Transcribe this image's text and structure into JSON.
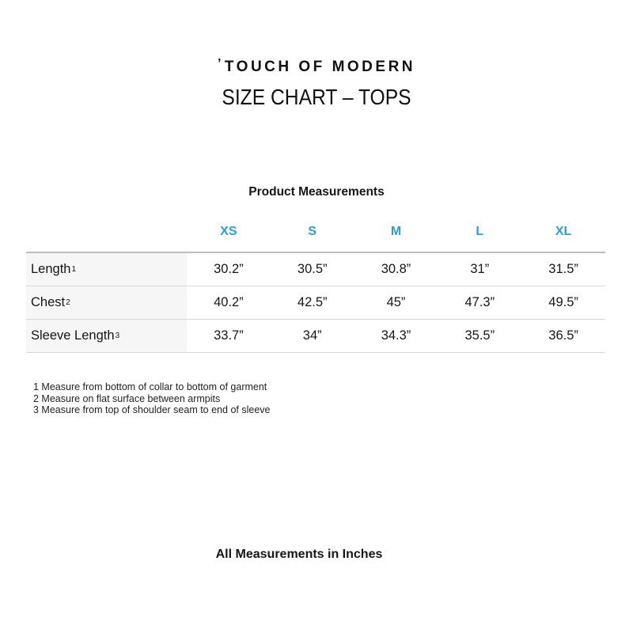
{
  "logo": {
    "mark": "’",
    "text": "TOUCH OF MODERN"
  },
  "title": "SIZE CHART – TOPS",
  "table": {
    "caption": "Product Measurements",
    "sizes": [
      "XS",
      "S",
      "M",
      "L",
      "XL"
    ],
    "rows": [
      {
        "label": "Length",
        "sup": "1",
        "values": [
          "30.2”",
          "30.5”",
          "30.8”",
          "31”",
          "31.5”"
        ]
      },
      {
        "label": "Chest",
        "sup": "2",
        "values": [
          "40.2”",
          "42.5”",
          "45”",
          "47.3”",
          "49.5”"
        ]
      },
      {
        "label": "Sleeve Length",
        "sup": "3",
        "values": [
          "33.7”",
          "34”",
          "34.3”",
          "35.5”",
          "36.5”"
        ]
      }
    ]
  },
  "footnotes": [
    "1 Measure from bottom of collar to bottom of garment",
    "2 Measure on flat surface between armpits",
    "3 Measure from top of shoulder seam to end of sleeve"
  ],
  "footer": "All Measurements in Inches",
  "colors": {
    "accent_blue": "#2d9cdb"
  }
}
